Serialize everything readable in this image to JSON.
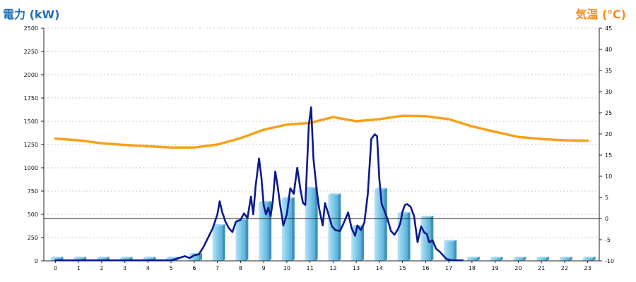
{
  "chart_data": {
    "type": "bar",
    "y_left_title": "電力 (kW)",
    "y_right_title": "気温 (℃)",
    "y_left_range": [
      0,
      2500
    ],
    "y_left_ticks": [
      0,
      250,
      500,
      750,
      1000,
      1250,
      1500,
      1750,
      2000,
      2250,
      2500
    ],
    "y_right_range": [
      -10,
      45
    ],
    "y_right_ticks": [
      -10,
      -5,
      0,
      5,
      10,
      15,
      20,
      25,
      30,
      35,
      40,
      45
    ],
    "categories": [
      "0",
      "1",
      "2",
      "3",
      "4",
      "5",
      "6",
      "7",
      "8",
      "9",
      "10",
      "11",
      "12",
      "13",
      "14",
      "15",
      "16",
      "17",
      "18",
      "19",
      "20",
      "21",
      "22",
      "23"
    ],
    "grid": "horizontal dashed",
    "reference_line": {
      "axis": "right",
      "value": 0
    },
    "series": [
      {
        "kind": "bar",
        "axis": "left",
        "color": "#7cc8ea",
        "values": [
          30,
          30,
          30,
          30,
          30,
          30,
          70,
          380,
          440,
          630,
          670,
          780,
          710,
          370,
          770,
          510,
          470,
          210,
          30,
          30,
          30,
          30,
          30,
          30
        ]
      },
      {
        "kind": "line",
        "axis": "left",
        "color": "#0a1a8c",
        "x": [
          0,
          1,
          2,
          3,
          4,
          5,
          5.6,
          5.8,
          6.0,
          6.2,
          6.4,
          6.6,
          6.8,
          7.0,
          7.1,
          7.2,
          7.35,
          7.5,
          7.65,
          7.8,
          8.0,
          8.15,
          8.3,
          8.45,
          8.55,
          8.65,
          8.8,
          8.9,
          9.0,
          9.1,
          9.2,
          9.3,
          9.4,
          9.5,
          9.6,
          9.7,
          9.85,
          10.0,
          10.15,
          10.3,
          10.45,
          10.6,
          10.7,
          10.8,
          10.95,
          11.05,
          11.15,
          11.3,
          11.4,
          11.55,
          11.65,
          11.8,
          11.95,
          12.1,
          12.3,
          12.5,
          12.65,
          12.8,
          12.95,
          13.05,
          13.2,
          13.35,
          13.5,
          13.65,
          13.8,
          13.9,
          14.0,
          14.1,
          14.2,
          14.35,
          14.5,
          14.65,
          14.8,
          14.9,
          15.0,
          15.1,
          15.2,
          15.35,
          15.5,
          15.65,
          15.8,
          15.95,
          16.05,
          16.15,
          16.3,
          16.45,
          16.6,
          16.75,
          16.9,
          17.05,
          17.2,
          17.35,
          17.5,
          17.6
        ],
        "values": [
          5,
          5,
          5,
          5,
          5,
          5,
          50,
          30,
          60,
          70,
          150,
          250,
          350,
          500,
          640,
          530,
          420,
          350,
          310,
          420,
          440,
          510,
          460,
          690,
          500,
          800,
          1100,
          900,
          600,
          500,
          570,
          480,
          650,
          960,
          810,
          620,
          380,
          500,
          780,
          720,
          1000,
          750,
          620,
          600,
          1460,
          1650,
          1100,
          740,
          560,
          380,
          620,
          500,
          370,
          330,
          320,
          430,
          520,
          350,
          270,
          380,
          330,
          410,
          720,
          1310,
          1360,
          1340,
          870,
          610,
          550,
          450,
          320,
          280,
          340,
          400,
          530,
          600,
          610,
          580,
          480,
          200,
          370,
          300,
          290,
          200,
          220,
          130,
          100,
          60,
          20,
          10,
          5,
          5,
          5,
          5
        ]
      },
      {
        "kind": "line",
        "axis": "right",
        "color": "#f7a21b",
        "values": [
          18.9,
          18.5,
          17.8,
          17.4,
          17.1,
          16.8,
          16.8,
          17.5,
          19.0,
          21.0,
          22.2,
          22.6,
          24.0,
          23.0,
          23.5,
          24.3,
          24.2,
          23.5,
          21.8,
          20.5,
          19.3,
          18.8,
          18.5,
          18.4
        ]
      }
    ]
  }
}
